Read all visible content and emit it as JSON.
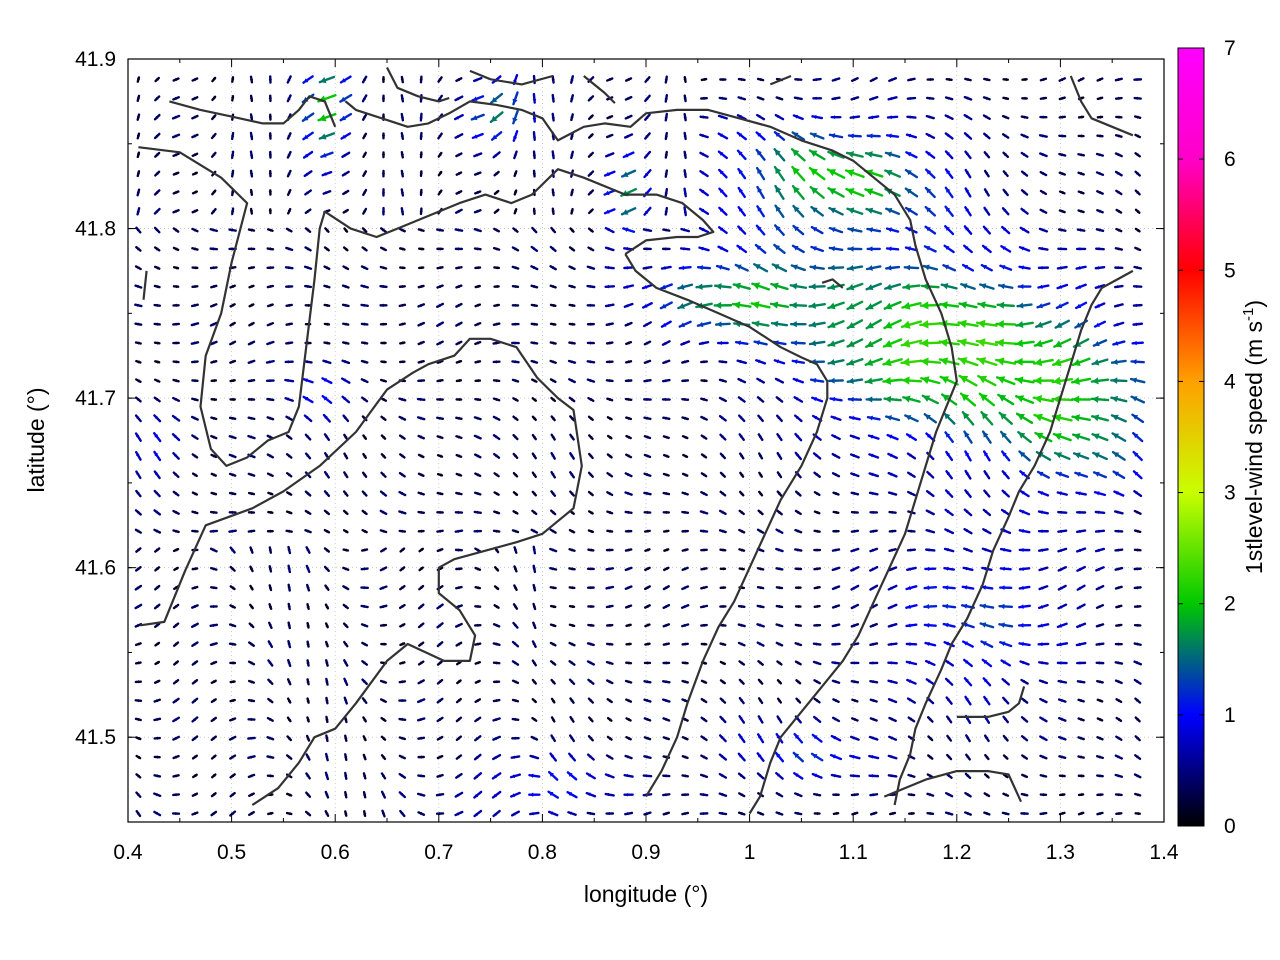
{
  "chart_data": {
    "type": "vector-field",
    "xlabel": "longitude (°)",
    "ylabel": "latitude (°)",
    "colorbar_label": "1stlevel-wind speed (m s-1)",
    "colorbar_label_parts": {
      "main": "1stlevel-wind speed (m s",
      "sup": "-1",
      "end": ")"
    },
    "xlim": [
      0.4,
      1.4
    ],
    "ylim": [
      41.45,
      41.9
    ],
    "clim": [
      0,
      7
    ],
    "xticks": [
      "0.4",
      "0.5",
      "0.6",
      "0.7",
      "0.8",
      "0.9",
      "1",
      "1.1",
      "1.2",
      "1.3",
      "1.4"
    ],
    "yticks": [
      "41.5",
      "41.6",
      "41.7",
      "41.8",
      "41.9"
    ],
    "cticks": [
      "0",
      "1",
      "2",
      "3",
      "4",
      "5",
      "6",
      "7"
    ],
    "grid": true,
    "colormap": [
      "#000000",
      "#0000ff",
      "#00c800",
      "#c8ff00",
      "#ffa000",
      "#ff0000",
      "#ff00c8",
      "#ff00ff"
    ],
    "vector_grid": {
      "lon_start": 0.41,
      "lon_end": 1.39,
      "lon_step": 0.0182,
      "lat_start": 41.455,
      "lat_end": 41.897,
      "lat_step": 0.0111
    },
    "coast_color": "#333333",
    "coastlines": [
      [
        [
          0.412,
          41.566
        ],
        [
          0.435,
          41.568
        ],
        [
          0.455,
          41.598
        ],
        [
          0.475,
          41.625
        ],
        [
          0.52,
          41.635
        ],
        [
          0.55,
          41.645
        ],
        [
          0.585,
          41.66
        ],
        [
          0.62,
          41.68
        ],
        [
          0.65,
          41.705
        ],
        [
          0.675,
          41.715
        ],
        [
          0.69,
          41.72
        ],
        [
          0.715,
          41.725
        ],
        [
          0.73,
          41.735
        ],
        [
          0.75,
          41.735
        ],
        [
          0.775,
          41.73
        ],
        [
          0.795,
          41.712
        ],
        [
          0.815,
          41.7
        ],
        [
          0.83,
          41.693
        ],
        [
          0.838,
          41.66
        ],
        [
          0.83,
          41.635
        ],
        [
          0.8,
          41.62
        ],
        [
          0.775,
          41.615
        ],
        [
          0.745,
          41.61
        ],
        [
          0.715,
          41.605
        ],
        [
          0.7,
          41.6
        ],
        [
          0.7,
          41.585
        ],
        [
          0.72,
          41.575
        ],
        [
          0.735,
          41.56
        ],
        [
          0.73,
          41.545
        ],
        [
          0.705,
          41.545
        ],
        [
          0.67,
          41.555
        ],
        [
          0.65,
          41.545
        ],
        [
          0.62,
          41.52
        ],
        [
          0.6,
          41.505
        ],
        [
          0.58,
          41.5
        ],
        [
          0.565,
          41.485
        ],
        [
          0.545,
          41.47
        ],
        [
          0.52,
          41.46
        ]
      ],
      [
        [
          0.41,
          41.848
        ],
        [
          0.45,
          41.845
        ],
        [
          0.49,
          41.83
        ],
        [
          0.515,
          41.815
        ],
        [
          0.5,
          41.78
        ],
        [
          0.49,
          41.75
        ],
        [
          0.475,
          41.725
        ],
        [
          0.47,
          41.695
        ],
        [
          0.48,
          41.67
        ],
        [
          0.495,
          41.66
        ],
        [
          0.515,
          41.665
        ],
        [
          0.535,
          41.675
        ],
        [
          0.555,
          41.68
        ],
        [
          0.565,
          41.695
        ],
        [
          0.58,
          41.77
        ],
        [
          0.585,
          41.8
        ],
        [
          0.59,
          41.81
        ],
        [
          0.615,
          41.8
        ],
        [
          0.64,
          41.795
        ],
        [
          0.66,
          41.8
        ],
        [
          0.68,
          41.805
        ],
        [
          0.7,
          41.81
        ],
        [
          0.72,
          41.815
        ],
        [
          0.745,
          41.82
        ],
        [
          0.77,
          41.815
        ],
        [
          0.79,
          41.82
        ],
        [
          0.815,
          41.835
        ],
        [
          0.84,
          41.83
        ],
        [
          0.88,
          41.82
        ],
        [
          0.91,
          41.82
        ],
        [
          0.935,
          41.815
        ],
        [
          0.955,
          41.805
        ],
        [
          0.965,
          41.798
        ],
        [
          0.95,
          41.795
        ],
        [
          0.93,
          41.795
        ],
        [
          0.9,
          41.793
        ],
        [
          0.88,
          41.785
        ]
      ],
      [
        [
          0.88,
          41.785
        ],
        [
          0.89,
          41.775
        ],
        [
          0.91,
          41.765
        ],
        [
          0.94,
          41.758
        ],
        [
          0.97,
          41.75
        ],
        [
          1.0,
          41.742
        ],
        [
          1.03,
          41.73
        ],
        [
          1.05,
          41.724
        ],
        [
          1.065,
          41.72
        ],
        [
          1.075,
          41.71
        ],
        [
          1.075,
          41.7
        ],
        [
          1.065,
          41.68
        ],
        [
          1.05,
          41.66
        ],
        [
          1.03,
          41.64
        ],
        [
          1.015,
          41.62
        ],
        [
          1.0,
          41.6
        ],
        [
          0.985,
          41.58
        ],
        [
          0.97,
          41.565
        ],
        [
          0.955,
          41.545
        ],
        [
          0.94,
          41.52
        ],
        [
          0.93,
          41.5
        ],
        [
          0.915,
          41.48
        ],
        [
          0.9,
          41.465
        ]
      ],
      [
        [
          0.61,
          41.875
        ],
        [
          0.62,
          41.87
        ],
        [
          0.645,
          41.865
        ],
        [
          0.67,
          41.86
        ],
        [
          0.69,
          41.862
        ],
        [
          0.71,
          41.868
        ],
        [
          0.73,
          41.875
        ],
        [
          0.755,
          41.873
        ],
        [
          0.78,
          41.87
        ],
        [
          0.8,
          41.865
        ],
        [
          0.815,
          41.852
        ],
        [
          0.84,
          41.86
        ],
        [
          0.86,
          41.862
        ],
        [
          0.885,
          41.86
        ],
        [
          0.9,
          41.868
        ],
        [
          0.93,
          41.87
        ],
        [
          0.96,
          41.87
        ],
        [
          0.99,
          41.865
        ],
        [
          1.02,
          41.86
        ],
        [
          1.05,
          41.852
        ],
        [
          1.08,
          41.846
        ],
        [
          1.1,
          41.84
        ],
        [
          1.12,
          41.83
        ],
        [
          1.14,
          41.82
        ],
        [
          1.155,
          41.805
        ],
        [
          1.16,
          41.79
        ],
        [
          1.17,
          41.77
        ],
        [
          1.185,
          41.75
        ],
        [
          1.195,
          41.73
        ],
        [
          1.2,
          41.71
        ],
        [
          1.19,
          41.695
        ],
        [
          1.18,
          41.68
        ],
        [
          1.17,
          41.66
        ],
        [
          1.16,
          41.64
        ],
        [
          1.15,
          41.62
        ],
        [
          1.135,
          41.6
        ],
        [
          1.12,
          41.58
        ],
        [
          1.105,
          41.56
        ],
        [
          1.09,
          41.545
        ],
        [
          1.07,
          41.53
        ],
        [
          1.05,
          41.515
        ],
        [
          1.03,
          41.5
        ],
        [
          1.02,
          41.485
        ],
        [
          1.01,
          41.465
        ],
        [
          1.0,
          41.455
        ]
      ],
      [
        [
          0.44,
          41.875
        ],
        [
          0.47,
          41.87
        ],
        [
          0.5,
          41.866
        ],
        [
          0.53,
          41.862
        ],
        [
          0.55,
          41.862
        ],
        [
          0.565,
          41.87
        ],
        [
          0.575,
          41.878
        ],
        [
          0.59,
          41.875
        ],
        [
          0.6,
          41.86
        ]
      ],
      [
        [
          0.65,
          41.895
        ],
        [
          0.66,
          41.883
        ],
        [
          0.68,
          41.878
        ],
        [
          0.7,
          41.875
        ],
        [
          0.71,
          41.877
        ]
      ],
      [
        [
          0.73,
          41.893
        ],
        [
          0.75,
          41.888
        ],
        [
          0.78,
          41.885
        ],
        [
          0.81,
          41.89
        ]
      ],
      [
        [
          0.84,
          41.89
        ],
        [
          0.86,
          41.88
        ],
        [
          0.87,
          41.874
        ]
      ],
      [
        [
          1.02,
          41.885
        ],
        [
          1.04,
          41.89
        ]
      ],
      [
        [
          1.31,
          41.89
        ],
        [
          1.32,
          41.875
        ],
        [
          1.33,
          41.865
        ],
        [
          1.35,
          41.86
        ],
        [
          1.37,
          41.855
        ]
      ],
      [
        [
          1.37,
          41.775
        ],
        [
          1.355,
          41.77
        ],
        [
          1.34,
          41.765
        ],
        [
          1.33,
          41.755
        ],
        [
          1.32,
          41.74
        ],
        [
          1.31,
          41.72
        ],
        [
          1.3,
          41.7
        ],
        [
          1.29,
          41.68
        ],
        [
          1.275,
          41.66
        ],
        [
          1.26,
          41.645
        ],
        [
          1.25,
          41.63
        ],
        [
          1.235,
          41.61
        ],
        [
          1.225,
          41.59
        ],
        [
          1.21,
          41.57
        ],
        [
          1.195,
          41.555
        ],
        [
          1.185,
          41.54
        ],
        [
          1.17,
          41.52
        ],
        [
          1.16,
          41.505
        ],
        [
          1.155,
          41.49
        ],
        [
          1.145,
          41.475
        ],
        [
          1.14,
          41.46
        ]
      ],
      [
        [
          1.2,
          41.512
        ],
        [
          1.23,
          41.512
        ],
        [
          1.25,
          41.515
        ],
        [
          1.26,
          41.52
        ],
        [
          1.265,
          41.53
        ]
      ],
      [
        [
          1.13,
          41.465
        ],
        [
          1.15,
          41.47
        ],
        [
          1.17,
          41.475
        ],
        [
          1.2,
          41.48
        ],
        [
          1.23,
          41.48
        ],
        [
          1.25,
          41.478
        ],
        [
          1.262,
          41.462
        ]
      ],
      [
        [
          1.07,
          41.768
        ],
        [
          1.08,
          41.77
        ],
        [
          1.09,
          41.765
        ]
      ],
      [
        [
          0.415,
          41.758
        ],
        [
          0.418,
          41.775
        ]
      ]
    ]
  }
}
